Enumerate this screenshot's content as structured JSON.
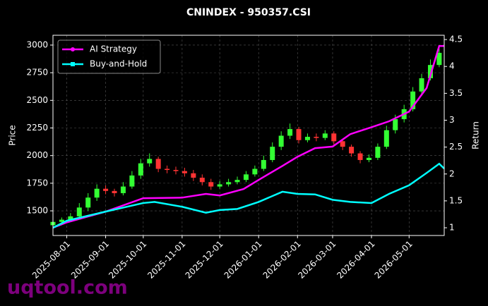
{
  "chart_data": {
    "type": "candlestick",
    "title": "CNINDEX - 950357.CSI",
    "y_label": "Price",
    "y2_label": "Return",
    "watermark": "uqtool.com",
    "xlim": [
      "2025-07-21",
      "2026-05-29"
    ],
    "xticks": [
      "2025-08-01",
      "2025-09-01",
      "2025-10-01",
      "2025-11-01",
      "2025-12-01",
      "2026-01-01",
      "2026-02-01",
      "2026-03-01",
      "2026-04-01",
      "2026-05-01"
    ],
    "ylim": [
      1277,
      3089
    ],
    "yticks": [
      1500,
      1750,
      2000,
      2250,
      2500,
      2750,
      3000
    ],
    "y2lim": [
      0.856,
      4.58
    ],
    "y2ticks": [
      1.0,
      1.5,
      2.0,
      2.5,
      3.0,
      3.5,
      4.0,
      4.5
    ],
    "grid": true,
    "legend": "upper left",
    "up_color": "#33ff33",
    "down_color": "#ff3333",
    "candles": {
      "x": [
        "2025-07-21",
        "2025-07-28",
        "2025-08-04",
        "2025-08-11",
        "2025-08-18",
        "2025-08-25",
        "2025-09-01",
        "2025-09-08",
        "2025-09-15",
        "2025-09-22",
        "2025-09-29",
        "2025-10-06",
        "2025-10-13",
        "2025-10-20",
        "2025-10-27",
        "2025-11-03",
        "2025-11-10",
        "2025-11-17",
        "2025-11-24",
        "2025-12-01",
        "2025-12-08",
        "2025-12-15",
        "2025-12-22",
        "2025-12-29",
        "2026-01-05",
        "2026-01-12",
        "2026-01-19",
        "2026-01-26",
        "2026-02-02",
        "2026-02-09",
        "2026-02-16",
        "2026-02-23",
        "2026-03-02",
        "2026-03-09",
        "2026-03-16",
        "2026-03-23",
        "2026-03-30",
        "2026-04-06",
        "2026-04-13",
        "2026-04-20",
        "2026-04-27",
        "2026-05-04",
        "2026-05-11",
        "2026-05-18",
        "2026-05-25"
      ],
      "open": [
        1370,
        1400,
        1420,
        1450,
        1530,
        1620,
        1700,
        1680,
        1660,
        1720,
        1820,
        1930,
        1970,
        1880,
        1870,
        1860,
        1840,
        1800,
        1760,
        1720,
        1740,
        1760,
        1780,
        1830,
        1880,
        1960,
        2080,
        2180,
        2240,
        2140,
        2170,
        2160,
        2200,
        2130,
        2080,
        2020,
        1960,
        1980,
        2080,
        2230,
        2330,
        2420,
        2580,
        2700,
        2820
      ],
      "close": [
        1400,
        1420,
        1450,
        1530,
        1620,
        1700,
        1680,
        1660,
        1720,
        1820,
        1930,
        1970,
        1880,
        1870,
        1860,
        1840,
        1800,
        1760,
        1720,
        1740,
        1760,
        1780,
        1830,
        1880,
        1960,
        2080,
        2180,
        2240,
        2140,
        2170,
        2160,
        2200,
        2130,
        2080,
        2020,
        1960,
        1980,
        2080,
        2230,
        2330,
        2420,
        2580,
        2700,
        2820,
        2930
      ],
      "high": [
        1420,
        1440,
        1480,
        1570,
        1660,
        1740,
        1730,
        1700,
        1760,
        1860,
        1970,
        2020,
        1990,
        1910,
        1900,
        1890,
        1870,
        1830,
        1790,
        1770,
        1790,
        1810,
        1860,
        1910,
        2000,
        2120,
        2220,
        2290,
        2260,
        2200,
        2200,
        2230,
        2220,
        2150,
        2100,
        2040,
        2010,
        2110,
        2270,
        2370,
        2460,
        2620,
        2740,
        2870,
        2990
      ],
      "low": [
        1340,
        1370,
        1400,
        1430,
        1500,
        1590,
        1650,
        1630,
        1640,
        1700,
        1790,
        1900,
        1850,
        1840,
        1830,
        1810,
        1770,
        1730,
        1690,
        1700,
        1720,
        1740,
        1760,
        1810,
        1860,
        1940,
        2050,
        2150,
        2110,
        2120,
        2130,
        2140,
        2100,
        2050,
        1990,
        1930,
        1940,
        1960,
        2060,
        2200,
        2300,
        2400,
        2560,
        2680,
        2800
      ]
    },
    "series": [
      {
        "name": "AI Strategy",
        "color": "#ff00ff",
        "axis": "y2",
        "marker": "o",
        "x": [
          "2025-07-21",
          "2025-08-01",
          "2025-09-01",
          "2025-10-01",
          "2025-11-01",
          "2025-11-20",
          "2025-12-01",
          "2025-12-20",
          "2026-01-01",
          "2026-01-20",
          "2026-02-01",
          "2026-02-15",
          "2026-03-01",
          "2026-03-15",
          "2026-04-01",
          "2026-04-15",
          "2026-05-01",
          "2026-05-15",
          "2026-05-25",
          "2026-05-29"
        ],
        "values": [
          1.0,
          1.1,
          1.3,
          1.55,
          1.56,
          1.63,
          1.6,
          1.72,
          1.89,
          2.15,
          2.32,
          2.48,
          2.51,
          2.74,
          2.87,
          2.98,
          3.16,
          3.6,
          4.38,
          4.38
        ]
      },
      {
        "name": "Buy-and-Hold",
        "color": "#00ffff",
        "axis": "y2",
        "marker": "s",
        "x": [
          "2025-07-21",
          "2025-08-01",
          "2025-09-01",
          "2025-10-01",
          "2025-10-10",
          "2025-11-01",
          "2025-11-20",
          "2025-12-01",
          "2025-12-15",
          "2026-01-01",
          "2026-01-20",
          "2026-02-01",
          "2026-02-15",
          "2026-03-01",
          "2026-03-15",
          "2026-04-01",
          "2026-04-15",
          "2026-05-01",
          "2026-05-15",
          "2026-05-25",
          "2026-05-29"
        ],
        "values": [
          1.0,
          1.13,
          1.3,
          1.46,
          1.48,
          1.39,
          1.28,
          1.33,
          1.35,
          1.48,
          1.67,
          1.63,
          1.62,
          1.52,
          1.48,
          1.46,
          1.63,
          1.79,
          2.02,
          2.19,
          2.1
        ]
      }
    ]
  }
}
